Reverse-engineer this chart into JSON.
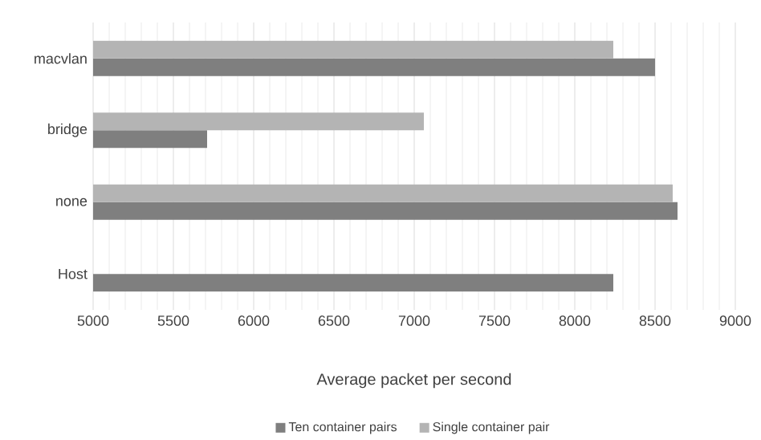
{
  "chart_data": {
    "type": "bar",
    "orientation": "horizontal",
    "xlabel": "Average packet per second",
    "categories": [
      "macvlan",
      "bridge",
      "none",
      "Host"
    ],
    "series": [
      {
        "name": "Ten container pairs",
        "color": "#7f7f7f",
        "values": [
          8500,
          5710,
          8640,
          8240
        ]
      },
      {
        "name": "Single container pair",
        "color": "#b4b4b4",
        "values": [
          8240,
          7060,
          8610,
          null
        ]
      }
    ],
    "xlim": [
      5000,
      9000
    ],
    "xticks": [
      5000,
      5500,
      6000,
      6500,
      7000,
      7500,
      8000,
      8500,
      9000
    ],
    "grid": "x",
    "legend": "bottom"
  }
}
